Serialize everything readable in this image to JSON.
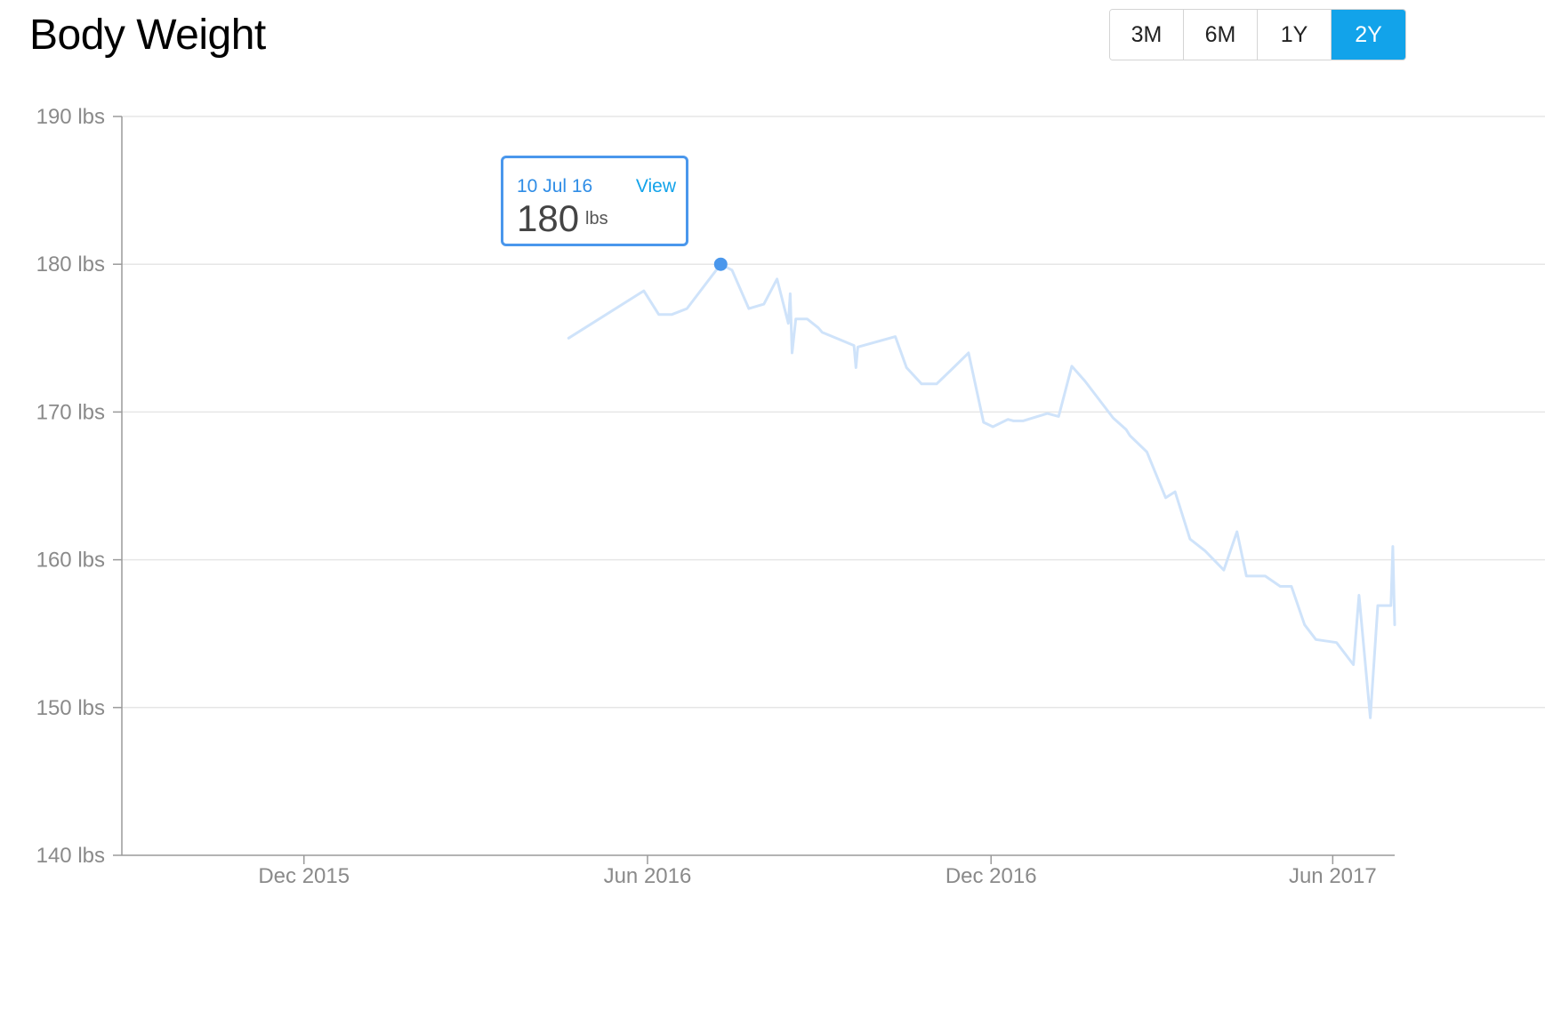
{
  "header": {
    "title": "Body Weight"
  },
  "ranges": [
    {
      "label": "3M",
      "active": false
    },
    {
      "label": "6M",
      "active": false
    },
    {
      "label": "1Y",
      "active": false
    },
    {
      "label": "2Y",
      "active": true
    }
  ],
  "tooltip": {
    "date": "10 Jul 16",
    "link": "View",
    "value": "180",
    "unit": "lbs"
  },
  "colors": {
    "line": "#cfe3fa",
    "marker": "#4a97ec",
    "accent": "#12a3ea",
    "grid": "#e6e6e6",
    "axis": "#9a9a9a"
  },
  "chart_data": {
    "type": "line",
    "title": "Body Weight",
    "ylim": [
      140,
      190
    ],
    "yticks": [
      140,
      150,
      160,
      170,
      180,
      190
    ],
    "ytick_labels": [
      "140 lbs",
      "150 lbs",
      "160 lbs",
      "170 lbs",
      "180 lbs",
      "190 lbs"
    ],
    "xlim": [
      "2015-08-26",
      "2017-07-04"
    ],
    "xticks": [
      "2015-12-01",
      "2016-06-01",
      "2016-12-01",
      "2017-06-01"
    ],
    "xtick_labels": [
      "Dec 2015",
      "Jun 2016",
      "Dec 2016",
      "Jun 2017"
    ],
    "grid": true,
    "highlight": {
      "x": "2016-07-10",
      "y": 180
    },
    "series": [
      {
        "x": [
          "2016-04-20",
          "2016-05-30",
          "2016-06-07",
          "2016-06-14",
          "2016-06-22",
          "2016-07-10",
          "2016-07-16",
          "2016-07-25",
          "2016-08-02",
          "2016-08-09",
          "2016-08-15",
          "2016-08-16",
          "2016-08-17",
          "2016-08-19",
          "2016-08-25",
          "2016-08-31",
          "2016-09-02",
          "2016-09-19",
          "2016-09-20",
          "2016-09-21",
          "2016-10-11",
          "2016-10-17",
          "2016-10-25",
          "2016-11-02",
          "2016-11-11",
          "2016-11-19",
          "2016-11-27",
          "2016-12-02",
          "2016-12-10",
          "2016-12-13",
          "2016-12-18",
          "2016-12-31",
          "2017-01-06",
          "2017-01-13",
          "2017-01-20",
          "2017-02-04",
          "2017-02-11",
          "2017-02-13",
          "2017-02-22",
          "2017-03-04",
          "2017-03-09",
          "2017-03-17",
          "2017-03-25",
          "2017-04-04",
          "2017-04-11",
          "2017-04-16",
          "2017-04-26",
          "2017-05-04",
          "2017-05-10",
          "2017-05-17",
          "2017-05-23",
          "2017-06-03",
          "2017-06-12",
          "2017-06-15",
          "2017-06-21",
          "2017-06-25",
          "2017-07-02",
          "2017-07-03",
          "2017-07-04"
        ],
        "values": [
          175,
          178.2,
          176.6,
          176.6,
          177,
          180,
          179.6,
          177,
          177.3,
          179,
          176,
          178,
          174,
          176.3,
          176.3,
          175.7,
          175.4,
          174.5,
          173,
          174.4,
          175.1,
          173,
          171.9,
          171.9,
          173,
          174,
          169.3,
          169,
          169.5,
          169.4,
          169.4,
          169.9,
          169.7,
          173.1,
          172.1,
          169.6,
          168.8,
          168.4,
          167.3,
          164.2,
          164.6,
          161.4,
          160.6,
          159.3,
          161.9,
          158.9,
          158.9,
          158.2,
          158.2,
          155.6,
          154.6,
          154.4,
          152.9,
          157.6,
          149.3,
          156.9,
          156.9,
          160.9,
          155.6
        ]
      }
    ]
  }
}
